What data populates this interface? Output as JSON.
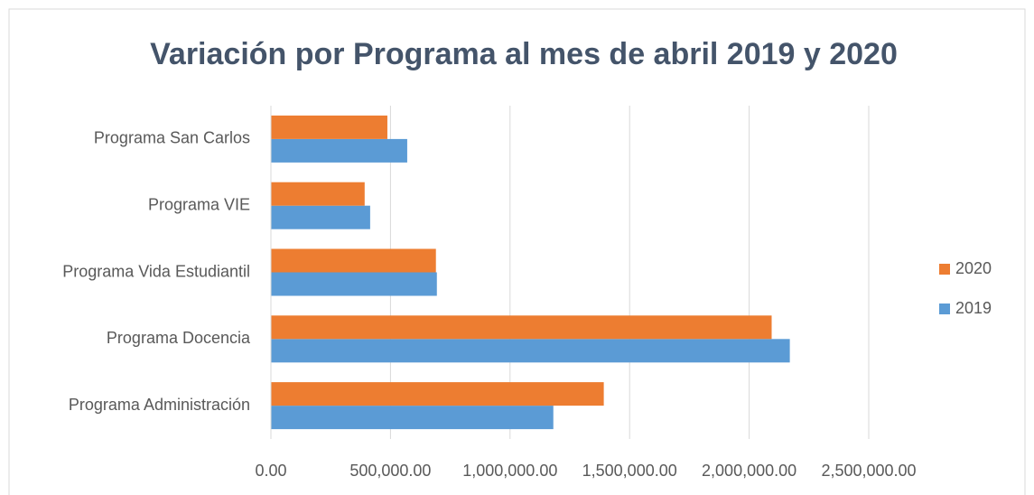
{
  "chart_data": {
    "type": "hbar",
    "title": "Variación por Programa al mes de abril 2019 y 2020",
    "categories": [
      "Programa Administración",
      "Programa Docencia",
      "Programa Vida Estudiantil",
      "Programa VIE",
      "Programa San Carlos"
    ],
    "series": [
      {
        "name": "2019",
        "color": "#5b9bd5",
        "values": [
          1181000,
          2170000,
          694000,
          415000,
          570000
        ]
      },
      {
        "name": "2020",
        "color": "#ed7d31",
        "values": [
          1392000,
          2094000,
          690000,
          392000,
          487000
        ]
      }
    ],
    "xlim": [
      0,
      2500000
    ],
    "xticks": [
      {
        "value": 0,
        "label": "0.00"
      },
      {
        "value": 500000,
        "label": "500,000.00"
      },
      {
        "value": 1000000,
        "label": "1,000,000.00"
      },
      {
        "value": 1500000,
        "label": "1,500,000.00"
      },
      {
        "value": 2000000,
        "label": "2,000,000.00"
      },
      {
        "value": 2500000,
        "label": "2,500,000.00"
      }
    ],
    "grid": true,
    "legend": "right"
  }
}
